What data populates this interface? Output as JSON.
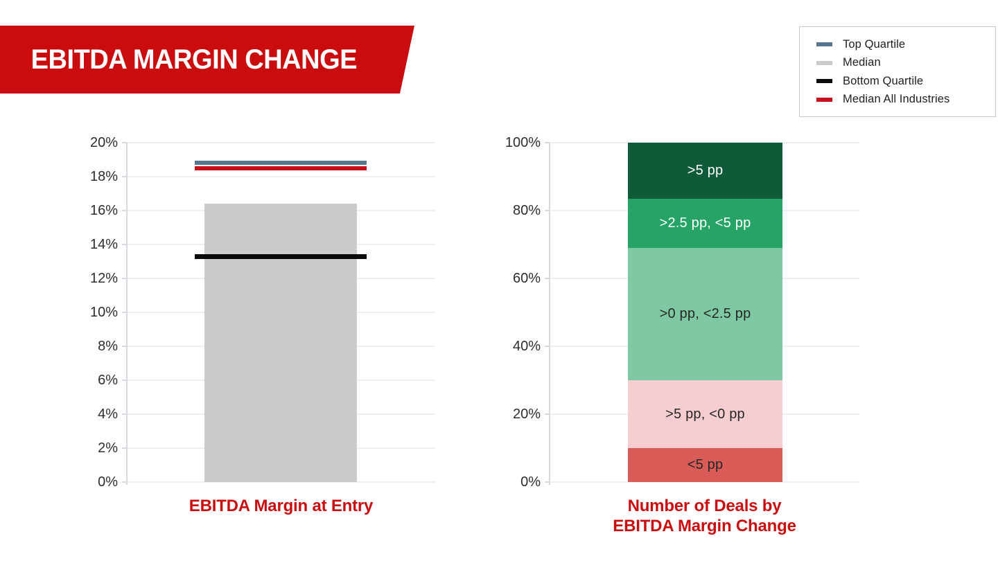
{
  "banner": {
    "title": "EBITDA MARGIN CHANGE"
  },
  "colors": {
    "brand_red": "#cb0c0f",
    "top_quartile_blue": "#56778e",
    "median_gray": "#cbcbcb",
    "bottom_quartile_black": "#0b0b0b",
    "median_all_industries_red": "#c9101a",
    "dark_green": "#0f5a38",
    "mid_green": "#26a466",
    "light_green": "#7ec8a3",
    "pink": "#f6cdd0",
    "salmon_red": "#d95c59",
    "gridline": "#eceff2",
    "axis": "#d6dade",
    "tick_text": "#2d2d2d"
  },
  "legend": {
    "items": [
      {
        "label": "Top Quartile",
        "color": "#56778e"
      },
      {
        "label": "Median",
        "color": "#cbcbcb"
      },
      {
        "label": "Bottom Quartile",
        "color": "#0b0b0b"
      },
      {
        "label": "Median All Industries",
        "color": "#c9101a"
      }
    ]
  },
  "chart_data": [
    {
      "type": "bar",
      "title": "EBITDA Margin at Entry",
      "title_lines": [
        "EBITDA Margin at Entry"
      ],
      "ylim": [
        0,
        20
      ],
      "ytick_labels": [
        "0%",
        "2%",
        "4%",
        "6%",
        "8%",
        "10%",
        "12%",
        "14%",
        "16%",
        "18%",
        "20%"
      ],
      "grid": true,
      "unit": "%",
      "series": [
        {
          "name": "Median",
          "style": "bar",
          "value": 16.4,
          "color": "#cbcbcb"
        },
        {
          "name": "Bottom Quartile",
          "style": "line",
          "value": 13.3,
          "color": "#0b0b0b"
        },
        {
          "name": "Median All Industries",
          "style": "line",
          "value": 18.5,
          "color": "#c9101a"
        },
        {
          "name": "Top Quartile",
          "style": "line",
          "value": 18.8,
          "color": "#56778e"
        }
      ]
    },
    {
      "type": "stacked-bar",
      "title": "Number of Deals by EBITDA Margin Change",
      "title_lines": [
        "Number of Deals by",
        "EBITDA Margin Change"
      ],
      "ylim": [
        0,
        100
      ],
      "ytick_labels": [
        "0%",
        "20%",
        "40%",
        "60%",
        "80%",
        "100%"
      ],
      "grid": true,
      "unit": "% of deals",
      "segments_bottom_to_top": [
        {
          "label": "<5 pp",
          "value": 10,
          "color": "#d95c59",
          "label_color": "#262626"
        },
        {
          "label": ">5 pp, <0 pp",
          "value": 20,
          "color": "#f6cdd0",
          "label_color": "#262626"
        },
        {
          "label": ">0 pp, <2.5 pp",
          "value": 39,
          "color": "#7ec8a3",
          "label_color": "#262626"
        },
        {
          "label": ">2.5 pp, <5 pp",
          "value": 14.5,
          "color": "#26a466",
          "label_color": "#ffffff"
        },
        {
          "label": ">5 pp",
          "value": 16.5,
          "color": "#0f5a38",
          "label_color": "#ffffff"
        }
      ]
    }
  ]
}
